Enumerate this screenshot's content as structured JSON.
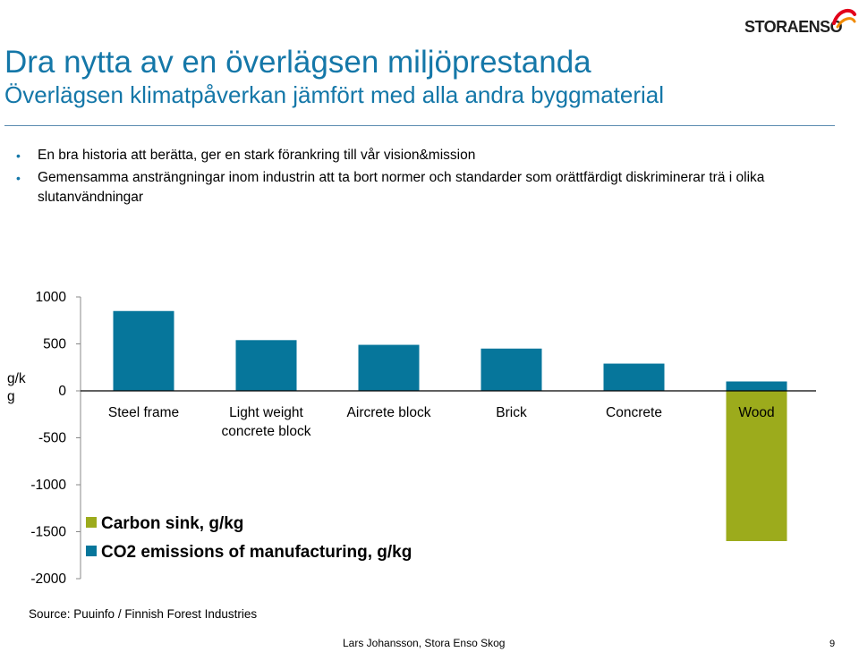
{
  "logo": {
    "text": "STORAENSO"
  },
  "title": "Dra nytta av en överlägsen miljöprestanda",
  "subtitle": "Överlägsen klimatpåverkan jämfört med alla andra byggmaterial",
  "bullets": [
    "En bra historia att berätta, ger en stark förankring till vår vision&mission",
    "Gemensamma ansträngningar inom industrin att ta bort normer och standarder som orättfärdigt diskriminerar trä i olika slutanvändningar"
  ],
  "chart_data": {
    "type": "bar",
    "ylabel": "g/k g",
    "ylabel_lines": [
      "g/k",
      "g"
    ],
    "ylim": [
      -2000,
      1000
    ],
    "yticks": [
      1000,
      500,
      0,
      -500,
      -1000,
      -1500,
      -2000
    ],
    "categories": [
      "Steel frame",
      "Light weight concrete block",
      "Aircrete block",
      "Brick",
      "Concrete",
      "Wood"
    ],
    "category_lines": [
      [
        "Steel frame"
      ],
      [
        "Light weight",
        "concrete block"
      ],
      [
        "Aircrete block"
      ],
      [
        "Brick"
      ],
      [
        "Concrete"
      ],
      [
        "Wood"
      ]
    ],
    "series": [
      {
        "name": "Carbon sink, g/kg",
        "color": "#9cab1c",
        "values": [
          0,
          0,
          0,
          0,
          0,
          -1600
        ]
      },
      {
        "name": "CO2 emissions of manufacturing, g/kg",
        "color": "#06769b",
        "values": [
          850,
          540,
          490,
          450,
          290,
          100
        ]
      }
    ],
    "grid": false,
    "legend_position": "bottom-left"
  },
  "source": "Source: Puuinfo / Finnish Forest Industries",
  "footer": {
    "author": "Lars Johansson, Stora Enso Skog",
    "page": "9"
  }
}
